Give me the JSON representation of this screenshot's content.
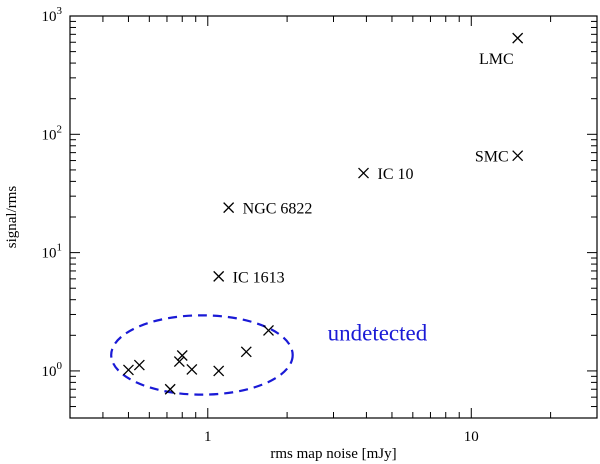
{
  "chart_data": {
    "type": "scatter",
    "xlabel": "rms map noise [mJy]",
    "ylabel": "signal/rms",
    "xscale": "log",
    "yscale": "log",
    "xlim": [
      0.3,
      30
    ],
    "ylim": [
      0.4,
      1000
    ],
    "grid": false,
    "legend": "none",
    "x_tick_labels": [
      {
        "value": 1,
        "label": "1"
      },
      {
        "value": 10,
        "label": "10"
      }
    ],
    "y_tick_labels": [
      {
        "value": 1,
        "base": "10",
        "exp": "0"
      },
      {
        "value": 10,
        "base": "10",
        "exp": "1"
      },
      {
        "value": 100,
        "base": "10",
        "exp": "2"
      },
      {
        "value": 1000,
        "base": "10",
        "exp": "3"
      }
    ],
    "series": [
      {
        "marker": "x",
        "color": "#000000",
        "points": [
          {
            "x": 15,
            "y": 650,
            "label": "LMC"
          },
          {
            "x": 15,
            "y": 66,
            "label": "SMC"
          },
          {
            "x": 3.9,
            "y": 47,
            "label": "IC 10"
          },
          {
            "x": 1.2,
            "y": 24,
            "label": "NGC 6822"
          },
          {
            "x": 1.1,
            "y": 6.3,
            "label": "IC 1613"
          },
          {
            "x": 0.5,
            "y": 1.02,
            "label": ""
          },
          {
            "x": 0.55,
            "y": 1.12,
            "label": ""
          },
          {
            "x": 0.72,
            "y": 0.7,
            "label": ""
          },
          {
            "x": 0.78,
            "y": 1.2,
            "label": ""
          },
          {
            "x": 0.8,
            "y": 1.35,
            "label": ""
          },
          {
            "x": 0.87,
            "y": 1.03,
            "label": ""
          },
          {
            "x": 1.1,
            "y": 1.0,
            "label": ""
          },
          {
            "x": 1.4,
            "y": 1.45,
            "label": ""
          },
          {
            "x": 1.7,
            "y": 2.2,
            "label": ""
          }
        ]
      }
    ],
    "annotations": [
      {
        "text": "undetected",
        "color": "#1a1ad6",
        "style": "dashed-ellipse"
      }
    ]
  }
}
